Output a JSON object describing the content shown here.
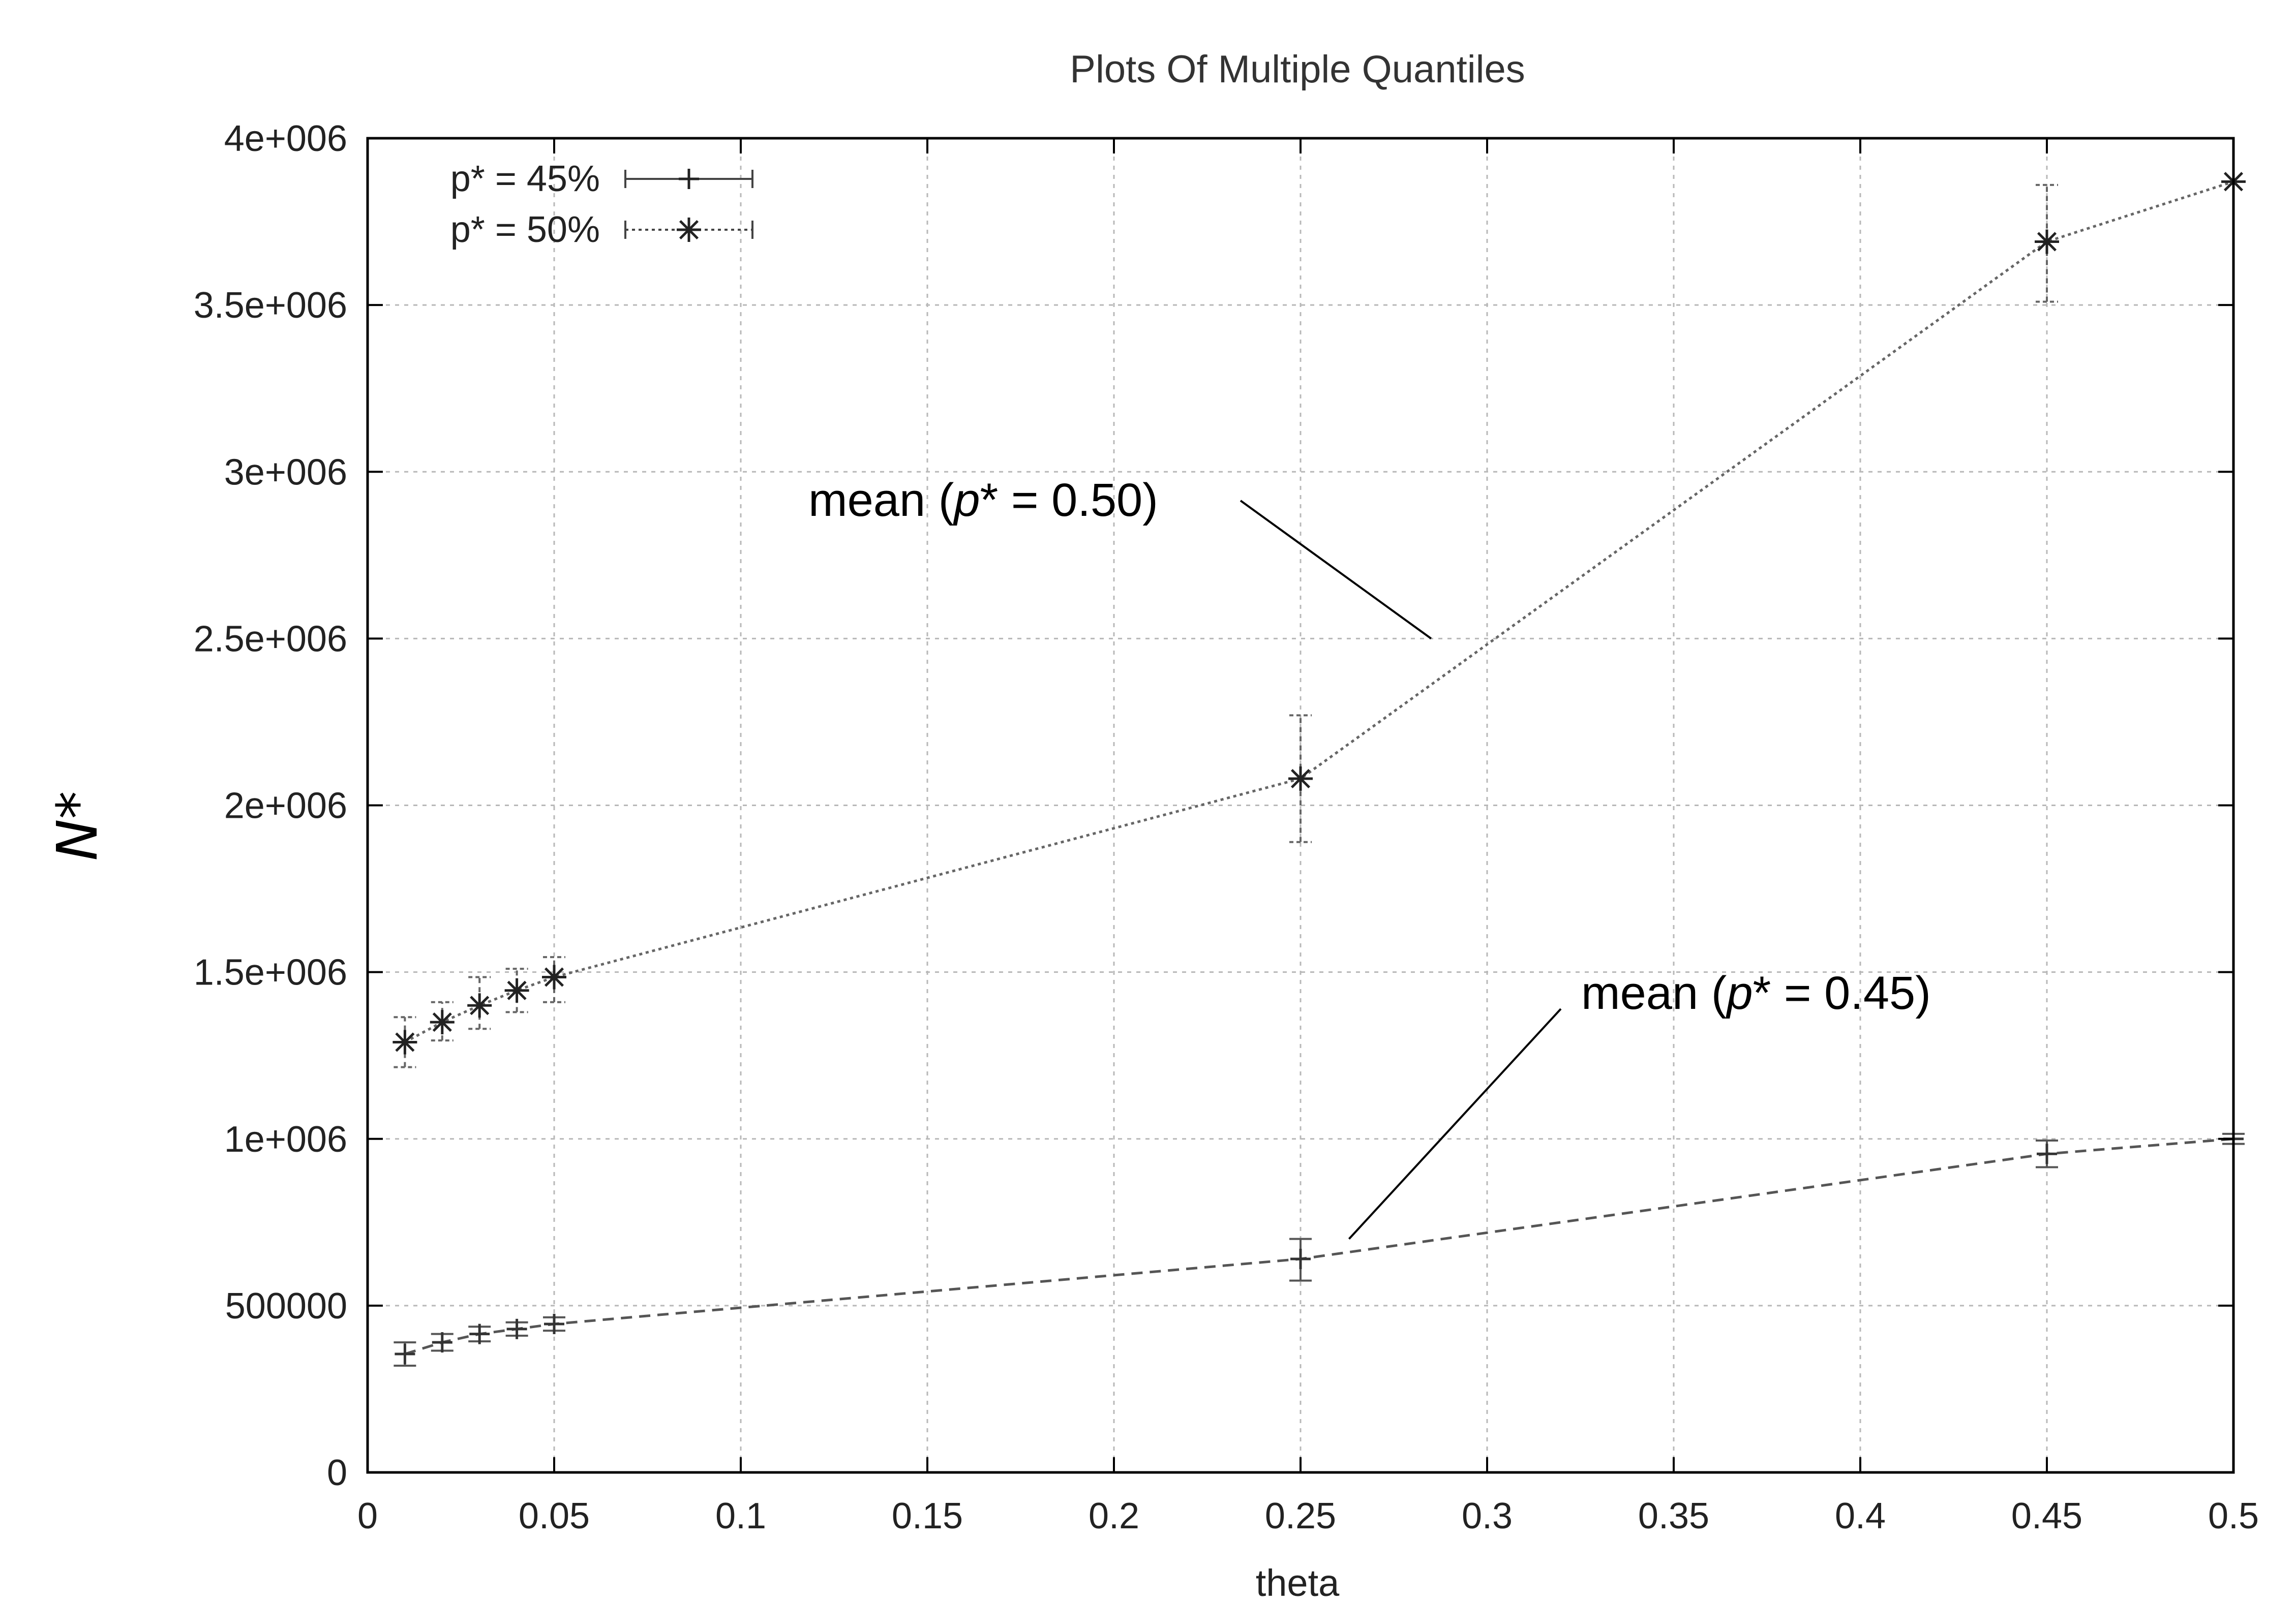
{
  "chart_data": {
    "type": "line",
    "title": "Plots Of Multiple Quantiles",
    "xlabel": "theta",
    "ylabel": "N*",
    "xlim": [
      0,
      0.5
    ],
    "ylim": [
      0,
      4000000
    ],
    "x_ticks": [
      0,
      0.05,
      0.1,
      0.15,
      0.2,
      0.25,
      0.3,
      0.35,
      0.4,
      0.45,
      0.5
    ],
    "x_tick_labels": [
      "0",
      "0.05",
      "0.1",
      "0.15",
      "0.2",
      "0.25",
      "0.3",
      "0.35",
      "0.4",
      "0.45",
      "0.5"
    ],
    "y_ticks": [
      0,
      500000,
      1000000,
      1500000,
      2000000,
      2500000,
      3000000,
      3500000,
      4000000
    ],
    "y_tick_labels": [
      "0",
      "500000",
      "1e+006",
      "1.5e+006",
      "2e+006",
      "2.5e+006",
      "3e+006",
      "3.5e+006",
      "4e+006"
    ],
    "grid": true,
    "legend_position": "top-left",
    "series": [
      {
        "name": "p* = 45%",
        "marker": "plus",
        "line_style": "dashed",
        "color": "#555555",
        "points": [
          {
            "x": 0.01,
            "y": 355000,
            "err_low": 320000,
            "err_high": 390000
          },
          {
            "x": 0.02,
            "y": 390000,
            "err_low": 365000,
            "err_high": 415000
          },
          {
            "x": 0.03,
            "y": 415000,
            "err_low": 393000,
            "err_high": 437000
          },
          {
            "x": 0.04,
            "y": 430000,
            "err_low": 410000,
            "err_high": 450000
          },
          {
            "x": 0.05,
            "y": 445000,
            "err_low": 425000,
            "err_high": 465000
          },
          {
            "x": 0.25,
            "y": 640000,
            "err_low": 575000,
            "err_high": 700000
          },
          {
            "x": 0.45,
            "y": 955000,
            "err_low": 915000,
            "err_high": 995000
          },
          {
            "x": 0.5,
            "y": 1000000,
            "err_low": 985000,
            "err_high": 1015000
          }
        ]
      },
      {
        "name": "p* = 50%",
        "marker": "asterisk",
        "line_style": "dotted",
        "color": "#666666",
        "points": [
          {
            "x": 0.01,
            "y": 1290000,
            "err_low": 1215000,
            "err_high": 1365000
          },
          {
            "x": 0.02,
            "y": 1350000,
            "err_low": 1295000,
            "err_high": 1410000
          },
          {
            "x": 0.03,
            "y": 1400000,
            "err_low": 1330000,
            "err_high": 1485000
          },
          {
            "x": 0.04,
            "y": 1445000,
            "err_low": 1380000,
            "err_high": 1510000
          },
          {
            "x": 0.05,
            "y": 1485000,
            "err_low": 1410000,
            "err_high": 1545000
          },
          {
            "x": 0.25,
            "y": 2080000,
            "err_low": 1890000,
            "err_high": 2270000
          },
          {
            "x": 0.45,
            "y": 3690000,
            "err_low": 3510000,
            "err_high": 3860000
          },
          {
            "x": 0.5,
            "y": 3870000,
            "err_low": 3870000,
            "err_high": 3870000
          }
        ]
      }
    ],
    "annotations": [
      {
        "prefix": "mean (",
        "italic": "p",
        "suffix": "* = 0.50)",
        "target_x": 0.285,
        "target_y": 2500000
      },
      {
        "prefix": "mean (",
        "italic": "p",
        "suffix": "* = 0.45)",
        "target_x": 0.263,
        "target_y": 700000
      }
    ]
  }
}
